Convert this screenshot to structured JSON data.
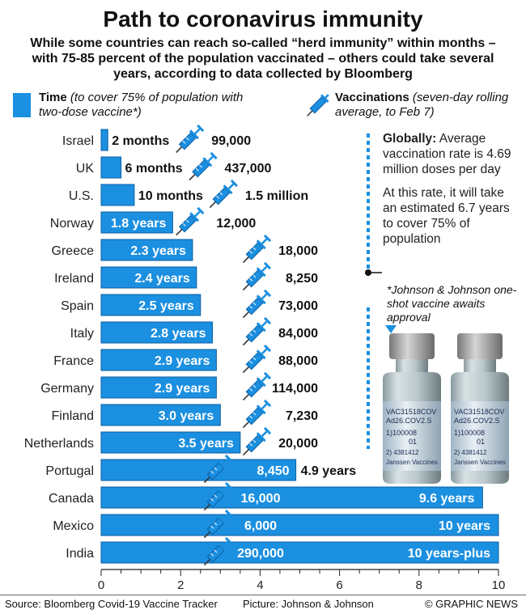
{
  "title": "Path to coronavirus immunity",
  "subtitle": "While some countries can reach so-called “herd immunity” within months – with 75-85 percent of the population vaccinated – others could take several years, according to data collected by Bloomberg",
  "legend": {
    "time_label": "Time",
    "time_desc": "(to cover 75% of population with two-dose vaccine*)",
    "vax_label": "Vaccinations",
    "vax_desc": "(seven-day rolling average, to Feb 7)",
    "vax_icon": "syringe-icon"
  },
  "global": {
    "label": "Globally:",
    "text1": "Average vaccination rate is 4.69 million doses per day",
    "text2": "At this rate, it will take an estimated 6.7 years to cover 75% of population"
  },
  "jj_note": "*Johnson & Johnson one-shot vaccine awaits approval",
  "vial_text": {
    "line1": "VAC31518COV",
    "line2": "Ad26.COV2.S",
    "line3": "1)100008",
    "line4": "01",
    "line5": "2) 4381412",
    "line6": "Janssen Vaccines"
  },
  "footer": {
    "source": "Source: Bloomberg Covid-19 Vaccine Tracker",
    "picture": "Picture: Johnson & Johnson",
    "credit": "© GRAPHIC NEWS"
  },
  "colors": {
    "bar": "#1b8fe0",
    "bar_edge": "#0d5fa3",
    "text": "#111111",
    "syringe": "#1b8fe0"
  },
  "chart_data": {
    "type": "bar",
    "orientation": "horizontal",
    "xlim": [
      0,
      10
    ],
    "xticks": [
      "0",
      "2",
      "4",
      "6",
      "8",
      "10"
    ],
    "global_rate_years": 6.7,
    "categories": [
      "Israel",
      "UK",
      "U.S.",
      "Norway",
      "Greece",
      "Ireland",
      "Spain",
      "Italy",
      "France",
      "Germany",
      "Finland",
      "Netherlands",
      "Portugal",
      "Canada",
      "Mexico",
      "India"
    ],
    "values": [
      0.167,
      0.5,
      0.833,
      1.8,
      2.3,
      2.4,
      2.5,
      2.8,
      2.9,
      2.9,
      3.0,
      3.5,
      4.9,
      9.6,
      10,
      10
    ],
    "time_labels": [
      "2 months",
      "6 months",
      "10 months",
      "1.8 years",
      "2.3 years",
      "2.4 years",
      "2.5 years",
      "2.8 years",
      "2.9 years",
      "2.9 years",
      "3.0 years",
      "3.5 years",
      "4.9 years",
      "9.6 years",
      "10 years",
      "10 years-plus"
    ],
    "vaccinations": [
      "99,000",
      "437,000",
      "1.5 million",
      "12,000",
      "18,000",
      "8,250",
      "73,000",
      "84,000",
      "88,000",
      "114,000",
      "7,230",
      "20,000",
      "8,450",
      "16,000",
      "6,000",
      "290,000"
    ]
  }
}
